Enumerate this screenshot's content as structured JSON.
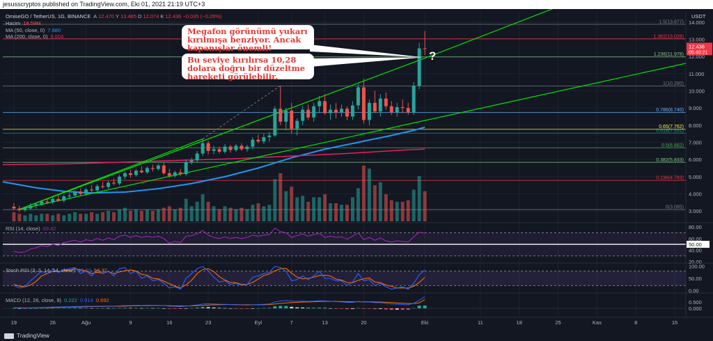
{
  "publisher_line": "jesusscryptos published on TradingView.com, Eki 01, 2021 21:19 UTC+3",
  "legend": {
    "symbol": "OmiseGO / TetherUS, 1G, BINANCE",
    "ohlc": [
      {
        "text": "A",
        "color": "#b2b5be"
      },
      {
        "text": "12.470",
        "color": "#f23645"
      },
      {
        "text": "Y",
        "color": "#b2b5be"
      },
      {
        "text": "13.485",
        "color": "#f23645"
      },
      {
        "text": "D",
        "color": "#b2b5be"
      },
      {
        "text": "12.074",
        "color": "#f23645"
      },
      {
        "text": "K",
        "color": "#b2b5be"
      },
      {
        "text": "12.436",
        "color": "#f23645"
      },
      {
        "text": "−0.035 (−0.28%)",
        "color": "#f23645"
      }
    ],
    "volume_label": "Hacim",
    "volume_value": "18.59M",
    "ma50_label": "MA (50, close, 0)",
    "ma50_value": "7.880",
    "ma200_label": "MA (200, close, 0)",
    "ma200_value": "6.604",
    "rsi_label": "RSI (14, close)",
    "rsi_value": "69.42",
    "stoch_label": "Stoch RSI (3, 3, 14, 14, close)",
    "stoch_k": "85.02",
    "stoch_d": "54.37",
    "macd_label": "MACD (12, 26, close, 9)",
    "macd_hist": "0.222",
    "macd_line": "0.914",
    "macd_signal": "0.692"
  },
  "callouts": {
    "first": "Megafon görünümü yukarı kırılmışa benziyor. Ancak kapanışlar önemli!",
    "second": "Bu seviye kırılırsa 10,28 dolara doğru bir düzeltme hareketi görülebilir.",
    "question_mark": "?"
  },
  "footer": {
    "brand": "TradingView"
  },
  "colors": {
    "background": "#131722",
    "up": "#26a69a",
    "down": "#ef5350",
    "ma50": "#2196f3",
    "ma200": "#e91e63",
    "megaphone": "#00e600",
    "rsi": "#9c27b0",
    "stoch_k": "#2962ff",
    "stoch_d": "#ff6d00"
  },
  "chart_data": {
    "type": "candlestick",
    "symbol": "OmiseGO / TetherUS",
    "timeframe": "1G",
    "exchange": "BINANCE",
    "price_axis_unit": "USDT",
    "y_ticks": [
      3.0,
      4.0,
      5.0,
      6.0,
      7.0,
      8.0,
      9.0,
      10.0,
      11.0,
      12.0,
      13.0,
      14.0
    ],
    "ylim": [
      2.4,
      14.6
    ],
    "x_ticks": [
      {
        "label": "19",
        "day": 0
      },
      {
        "label": "26",
        "day": 7
      },
      {
        "label": "Ağu",
        "day": 13
      },
      {
        "label": "9",
        "day": 21
      },
      {
        "label": "16",
        "day": 28
      },
      {
        "label": "23",
        "day": 35
      },
      {
        "label": "Eyl",
        "day": 44
      },
      {
        "label": "7",
        "day": 50
      },
      {
        "label": "13",
        "day": 56
      },
      {
        "label": "20",
        "day": 63
      },
      {
        "label": "Eki",
        "day": 74
      },
      {
        "label": "11",
        "day": 84
      },
      {
        "label": "18",
        "day": 91
      },
      {
        "label": "25",
        "day": 98
      },
      {
        "label": "Kas",
        "day": 105
      },
      {
        "label": "8",
        "day": 112
      },
      {
        "label": "15",
        "day": 119
      }
    ],
    "xlim": [
      -2,
      121
    ],
    "last_price": "12.436",
    "countdown": "05:40:21",
    "fib_levels": [
      {
        "label": "0(3.085)",
        "value": 3.085,
        "color": "#787b86"
      },
      {
        "label": "0.236(4.783)",
        "value": 4.783,
        "color": "#f23645"
      },
      {
        "label": "0.382(5.833)",
        "value": 5.833,
        "color": "#81c784"
      },
      {
        "label": "0.5(6.682)",
        "value": 6.682,
        "color": "#4caf50"
      },
      {
        "label": "0.618(7.531)",
        "value": 7.531,
        "color": "#089981"
      },
      {
        "label": "0.65(7.762)",
        "value": 7.762,
        "color": "#ffeb3b"
      },
      {
        "label": "0.786(8.740)",
        "value": 8.74,
        "color": "#64b5f6"
      },
      {
        "label": "1(10.280)",
        "value": 10.28,
        "color": "#787b86"
      },
      {
        "label": "1.236(11.978)",
        "value": 11.978,
        "color": "#81c784"
      },
      {
        "label": "1.382(13.028)",
        "value": 13.028,
        "color": "#f23645"
      },
      {
        "label": "1.5(13.877)",
        "value": 13.877,
        "color": "#787b86"
      }
    ],
    "candles": [
      [
        0,
        3.25,
        3.45,
        3.05,
        3.15
      ],
      [
        1,
        3.15,
        3.3,
        2.95,
        3.05
      ],
      [
        2,
        3.05,
        3.2,
        2.95,
        3.15
      ],
      [
        3,
        3.15,
        3.45,
        3.05,
        3.3
      ],
      [
        4,
        3.3,
        3.5,
        3.15,
        3.4
      ],
      [
        5,
        3.4,
        3.65,
        3.3,
        3.55
      ],
      [
        6,
        3.55,
        3.75,
        3.4,
        3.5
      ],
      [
        7,
        3.5,
        3.8,
        3.4,
        3.7
      ],
      [
        8,
        3.7,
        3.9,
        3.55,
        3.6
      ],
      [
        9,
        3.6,
        3.95,
        3.5,
        3.85
      ],
      [
        10,
        3.85,
        4.05,
        3.7,
        3.9
      ],
      [
        11,
        3.9,
        4.2,
        3.8,
        4.1
      ],
      [
        12,
        4.1,
        4.3,
        3.9,
        4.0
      ],
      [
        13,
        4.0,
        4.35,
        3.9,
        4.25
      ],
      [
        14,
        4.25,
        4.5,
        4.1,
        4.2
      ],
      [
        15,
        4.2,
        4.55,
        4.1,
        4.45
      ],
      [
        16,
        4.45,
        4.7,
        4.3,
        4.4
      ],
      [
        17,
        4.4,
        4.75,
        4.3,
        4.65
      ],
      [
        18,
        4.65,
        4.9,
        4.5,
        4.6
      ],
      [
        19,
        4.6,
        5.1,
        4.5,
        5.0
      ],
      [
        20,
        5.0,
        5.3,
        4.85,
        5.2
      ],
      [
        21,
        5.2,
        5.4,
        4.95,
        5.1
      ],
      [
        22,
        5.1,
        5.45,
        5.0,
        5.35
      ],
      [
        23,
        5.35,
        5.6,
        5.2,
        5.25
      ],
      [
        24,
        5.25,
        5.6,
        5.15,
        5.5
      ],
      [
        25,
        5.5,
        5.7,
        5.3,
        5.45
      ],
      [
        26,
        5.45,
        5.75,
        5.35,
        5.65
      ],
      [
        27,
        5.65,
        5.8,
        5.1,
        5.2
      ],
      [
        28,
        5.2,
        5.45,
        4.95,
        5.05
      ],
      [
        29,
        5.05,
        5.35,
        4.95,
        5.25
      ],
      [
        30,
        5.25,
        5.45,
        5.05,
        5.15
      ],
      [
        31,
        5.15,
        6.0,
        5.05,
        5.85
      ],
      [
        32,
        5.85,
        6.1,
        5.7,
        5.95
      ],
      [
        33,
        5.95,
        6.5,
        5.8,
        6.35
      ],
      [
        34,
        6.35,
        7.2,
        6.2,
        6.95
      ],
      [
        35,
        6.95,
        7.1,
        6.3,
        6.5
      ],
      [
        36,
        6.5,
        6.8,
        6.3,
        6.6
      ],
      [
        37,
        6.6,
        6.75,
        6.35,
        6.45
      ],
      [
        38,
        6.45,
        6.9,
        6.35,
        6.75
      ],
      [
        39,
        6.75,
        6.85,
        6.4,
        6.55
      ],
      [
        40,
        6.55,
        6.9,
        6.45,
        6.8
      ],
      [
        41,
        6.8,
        6.95,
        6.5,
        6.6
      ],
      [
        42,
        6.6,
        6.85,
        6.45,
        6.75
      ],
      [
        43,
        6.75,
        7.3,
        6.6,
        7.15
      ],
      [
        44,
        7.15,
        7.45,
        6.95,
        7.05
      ],
      [
        45,
        7.05,
        7.5,
        6.9,
        7.3
      ],
      [
        46,
        7.3,
        7.6,
        7.05,
        7.4
      ],
      [
        47,
        7.4,
        9.1,
        7.3,
        8.95
      ],
      [
        48,
        8.95,
        10.3,
        8.0,
        8.2
      ],
      [
        49,
        8.2,
        9.0,
        7.7,
        8.85
      ],
      [
        50,
        8.85,
        9.3,
        7.5,
        7.8
      ],
      [
        51,
        7.8,
        8.4,
        7.4,
        8.25
      ],
      [
        52,
        8.25,
        9.1,
        8.0,
        8.9
      ],
      [
        53,
        8.9,
        9.2,
        8.3,
        8.45
      ],
      [
        54,
        8.45,
        9.3,
        8.2,
        9.1
      ],
      [
        55,
        9.1,
        9.7,
        8.7,
        9.4
      ],
      [
        56,
        9.4,
        9.8,
        8.6,
        8.7
      ],
      [
        57,
        8.7,
        9.2,
        8.3,
        8.9
      ],
      [
        58,
        8.9,
        9.3,
        8.4,
        8.75
      ],
      [
        59,
        8.75,
        9.2,
        8.5,
        8.95
      ],
      [
        60,
        8.95,
        9.1,
        8.3,
        8.5
      ],
      [
        61,
        8.5,
        9.4,
        8.3,
        9.15
      ],
      [
        62,
        9.15,
        10.4,
        8.9,
        10.2
      ],
      [
        63,
        10.2,
        10.7,
        8.1,
        8.3
      ],
      [
        64,
        8.3,
        9.5,
        8.0,
        9.3
      ],
      [
        65,
        9.3,
        10.0,
        8.7,
        8.8
      ],
      [
        66,
        8.8,
        9.8,
        8.5,
        9.55
      ],
      [
        67,
        9.55,
        9.9,
        8.9,
        9.1
      ],
      [
        68,
        9.1,
        9.4,
        8.6,
        8.75
      ],
      [
        69,
        8.75,
        9.3,
        8.5,
        9.05
      ],
      [
        70,
        9.05,
        9.5,
        8.7,
        9.0
      ],
      [
        71,
        9.0,
        9.3,
        8.6,
        8.75
      ],
      [
        72,
        8.75,
        10.5,
        8.6,
        10.3
      ],
      [
        73,
        10.3,
        12.8,
        10.1,
        12.47
      ],
      [
        74,
        12.47,
        13.485,
        12.074,
        12.436
      ]
    ],
    "volume": [
      0.6,
      0.5,
      0.4,
      0.5,
      0.4,
      0.5,
      0.5,
      0.4,
      0.5,
      0.4,
      0.5,
      0.6,
      0.5,
      0.5,
      0.6,
      0.5,
      0.6,
      0.7,
      0.6,
      0.8,
      0.9,
      0.7,
      0.8,
      0.7,
      0.8,
      0.7,
      0.8,
      0.9,
      1.0,
      0.8,
      0.9,
      1.5,
      1.0,
      1.3,
      1.8,
      1.3,
      1.0,
      0.8,
      1.0,
      0.9,
      0.8,
      0.9,
      0.8,
      1.1,
      1.2,
      1.0,
      1.1,
      2.8,
      3.2,
      2.0,
      2.3,
      1.6,
      1.7,
      1.3,
      1.6,
      1.6,
      1.8,
      1.2,
      1.2,
      1.1,
      1.1,
      1.6,
      2.2,
      3.7,
      3.5,
      2.4,
      2.6,
      1.8,
      1.4,
      1.3,
      1.3,
      1.4,
      2.1,
      3.0,
      2.0
    ],
    "ma50_points": [
      [
        -2,
        4.7
      ],
      [
        4,
        4.35
      ],
      [
        9,
        4.15
      ],
      [
        14,
        4.05
      ],
      [
        20,
        4.1
      ],
      [
        26,
        4.3
      ],
      [
        32,
        4.6
      ],
      [
        38,
        5.0
      ],
      [
        44,
        5.5
      ],
      [
        50,
        6.1
      ],
      [
        56,
        6.6
      ],
      [
        62,
        7.0
      ],
      [
        68,
        7.4
      ],
      [
        72,
        7.7
      ],
      [
        74,
        7.88
      ]
    ],
    "ma200_points": [
      [
        -2,
        5.7
      ],
      [
        10,
        5.75
      ],
      [
        20,
        5.85
      ],
      [
        30,
        5.95
      ],
      [
        40,
        6.05
      ],
      [
        50,
        6.2
      ],
      [
        60,
        6.35
      ],
      [
        70,
        6.55
      ],
      [
        74,
        6.604
      ]
    ],
    "megaphone_upper": [
      [
        1,
        3.1
      ],
      [
        74,
        11.9
      ]
    ],
    "megaphone_upper_ext": [
      [
        74,
        11.9
      ],
      [
        98,
        14.9
      ]
    ],
    "megaphone_lower": [
      [
        1,
        3.1
      ],
      [
        121,
        11.6
      ]
    ],
    "megaphone_top_dotted": [
      [
        34,
        7.2
      ],
      [
        48,
        10.3
      ]
    ],
    "megaphone_top_solid": [
      [
        1,
        3.1
      ],
      [
        34,
        7.2
      ]
    ],
    "rsi": {
      "levels": [
        70,
        50,
        30
      ],
      "ticks": [
        80.0,
        60.0,
        50.0,
        40.0,
        20.0
      ],
      "ylim": [
        20,
        85
      ],
      "values": [
        38,
        36,
        37,
        42,
        44,
        48,
        46,
        50,
        48,
        53,
        55,
        57,
        54,
        58,
        56,
        60,
        57,
        61,
        58,
        64,
        66,
        62,
        65,
        62,
        64,
        62,
        64,
        60,
        52,
        55,
        53,
        64,
        65,
        68,
        74,
        66,
        62,
        60,
        63,
        60,
        62,
        60,
        62,
        66,
        64,
        66,
        67,
        78,
        72,
        70,
        62,
        65,
        68,
        64,
        67,
        69,
        62,
        64,
        62,
        63,
        59,
        64,
        70,
        58,
        62,
        57,
        61,
        56,
        54,
        56,
        55,
        54,
        63,
        71,
        69.42
      ]
    },
    "stoch": {
      "ticks": [
        100.0,
        50.0,
        0.0
      ],
      "ylim": [
        -5,
        105
      ],
      "k": [
        20,
        10,
        15,
        40,
        60,
        80,
        70,
        90,
        75,
        85,
        90,
        95,
        70,
        80,
        60,
        85,
        70,
        80,
        60,
        90,
        95,
        70,
        80,
        50,
        60,
        40,
        45,
        30,
        10,
        15,
        5,
        50,
        70,
        90,
        100,
        80,
        55,
        35,
        40,
        25,
        30,
        20,
        25,
        55,
        60,
        70,
        75,
        100,
        95,
        80,
        40,
        45,
        60,
        45,
        60,
        80,
        50,
        50,
        40,
        40,
        20,
        35,
        70,
        40,
        45,
        20,
        30,
        15,
        5,
        10,
        15,
        5,
        30,
        65,
        85.02
      ],
      "d": [
        25,
        18,
        15,
        22,
        38,
        60,
        70,
        80,
        78,
        83,
        83,
        90,
        85,
        82,
        70,
        75,
        72,
        78,
        70,
        77,
        82,
        85,
        81,
        67,
        63,
        50,
        48,
        38,
        28,
        18,
        10,
        23,
        42,
        70,
        87,
        90,
        78,
        57,
        43,
        33,
        32,
        25,
        25,
        33,
        47,
        62,
        68,
        82,
        90,
        92,
        72,
        55,
        48,
        50,
        55,
        62,
        63,
        60,
        47,
        43,
        33,
        32,
        42,
        48,
        52,
        35,
        32,
        22,
        17,
        10,
        10,
        10,
        17,
        33,
        54.37
      ]
    },
    "macd": {
      "ticks": [
        0.5,
        0.0
      ],
      "ylim": [
        -0.6,
        1.05
      ],
      "macd_line": [
        0.05,
        0.04,
        0.03,
        0.04,
        0.05,
        0.07,
        0.08,
        0.1,
        0.11,
        0.12,
        0.13,
        0.15,
        0.15,
        0.16,
        0.16,
        0.17,
        0.17,
        0.18,
        0.18,
        0.2,
        0.22,
        0.22,
        0.23,
        0.23,
        0.24,
        0.24,
        0.24,
        0.22,
        0.18,
        0.16,
        0.14,
        0.18,
        0.22,
        0.27,
        0.34,
        0.36,
        0.35,
        0.33,
        0.32,
        0.3,
        0.29,
        0.27,
        0.26,
        0.28,
        0.3,
        0.32,
        0.34,
        0.5,
        0.58,
        0.62,
        0.58,
        0.56,
        0.57,
        0.55,
        0.57,
        0.6,
        0.58,
        0.56,
        0.53,
        0.51,
        0.47,
        0.47,
        0.55,
        0.5,
        0.5,
        0.45,
        0.45,
        0.4,
        0.35,
        0.33,
        0.31,
        0.28,
        0.4,
        0.65,
        0.914
      ],
      "signal": [
        0.04,
        0.04,
        0.04,
        0.04,
        0.04,
        0.05,
        0.06,
        0.07,
        0.08,
        0.09,
        0.1,
        0.11,
        0.12,
        0.13,
        0.14,
        0.15,
        0.15,
        0.16,
        0.16,
        0.17,
        0.18,
        0.19,
        0.2,
        0.21,
        0.21,
        0.22,
        0.22,
        0.22,
        0.21,
        0.2,
        0.19,
        0.19,
        0.19,
        0.21,
        0.23,
        0.26,
        0.28,
        0.29,
        0.3,
        0.3,
        0.3,
        0.29,
        0.29,
        0.29,
        0.29,
        0.29,
        0.3,
        0.34,
        0.39,
        0.43,
        0.46,
        0.48,
        0.5,
        0.51,
        0.52,
        0.54,
        0.55,
        0.55,
        0.55,
        0.54,
        0.53,
        0.52,
        0.52,
        0.52,
        0.52,
        0.51,
        0.5,
        0.48,
        0.46,
        0.43,
        0.41,
        0.38,
        0.38,
        0.44,
        0.692
      ]
    }
  }
}
